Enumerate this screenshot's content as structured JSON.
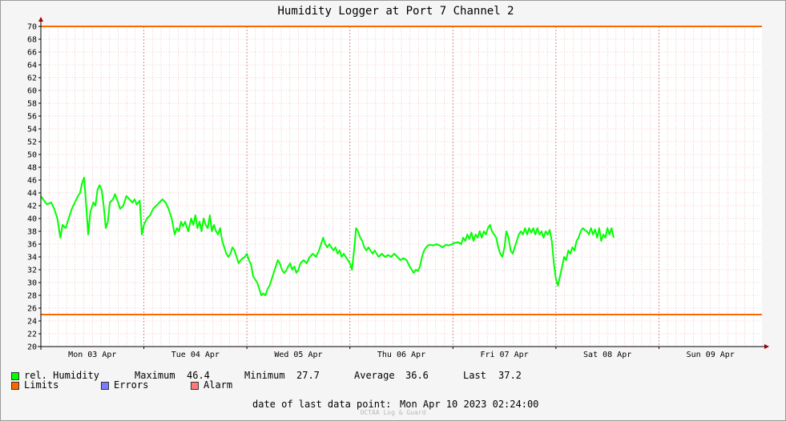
{
  "chart_data": {
    "type": "line",
    "title": "Humidity Logger at Port 7 Channel 2",
    "xlabel": "",
    "ylabel": "",
    "ylim": [
      20,
      70
    ],
    "yticks": [
      20,
      22,
      24,
      26,
      28,
      30,
      32,
      34,
      36,
      38,
      40,
      42,
      44,
      46,
      48,
      50,
      52,
      54,
      56,
      58,
      60,
      62,
      64,
      66,
      68,
      70
    ],
    "xlim": [
      0,
      7
    ],
    "x_tick_labels": [
      {
        "x": 0.5,
        "label": "Mon 03 Apr"
      },
      {
        "x": 1.5,
        "label": "Tue 04 Apr"
      },
      {
        "x": 2.5,
        "label": "Wed 05 Apr"
      },
      {
        "x": 3.5,
        "label": "Thu 06 Apr"
      },
      {
        "x": 4.5,
        "label": "Fri 07 Apr"
      },
      {
        "x": 5.5,
        "label": "Sat 08 Apr"
      },
      {
        "x": 6.5,
        "label": "Sun 09 Apr"
      }
    ],
    "grid": true,
    "limits": [
      25,
      70
    ],
    "series": [
      {
        "name": "rel. Humidity",
        "color": "#00ff00",
        "points": [
          [
            0.0,
            43.5
          ],
          [
            0.03,
            42.8
          ],
          [
            0.06,
            42.2
          ],
          [
            0.1,
            42.5
          ],
          [
            0.13,
            41.5
          ],
          [
            0.16,
            40.0
          ],
          [
            0.19,
            37.0
          ],
          [
            0.21,
            39.0
          ],
          [
            0.24,
            38.5
          ],
          [
            0.27,
            40.0
          ],
          [
            0.3,
            41.5
          ],
          [
            0.33,
            42.5
          ],
          [
            0.36,
            43.5
          ],
          [
            0.38,
            44.0
          ],
          [
            0.4,
            45.5
          ],
          [
            0.42,
            46.4
          ],
          [
            0.44,
            42.0
          ],
          [
            0.46,
            37.5
          ],
          [
            0.48,
            41.0
          ],
          [
            0.51,
            42.5
          ],
          [
            0.53,
            42.0
          ],
          [
            0.55,
            44.5
          ],
          [
            0.57,
            45.2
          ],
          [
            0.59,
            44.5
          ],
          [
            0.61,
            42.0
          ],
          [
            0.63,
            38.5
          ],
          [
            0.65,
            39.5
          ],
          [
            0.67,
            42.5
          ],
          [
            0.7,
            43.0
          ],
          [
            0.72,
            43.8
          ],
          [
            0.75,
            42.5
          ],
          [
            0.77,
            41.5
          ],
          [
            0.8,
            42.0
          ],
          [
            0.83,
            43.5
          ],
          [
            0.86,
            43.0
          ],
          [
            0.89,
            42.5
          ],
          [
            0.91,
            43.0
          ],
          [
            0.93,
            42.2
          ],
          [
            0.96,
            42.8
          ],
          [
            0.98,
            37.5
          ],
          [
            1.0,
            39.0
          ],
          [
            1.03,
            40.0
          ],
          [
            1.06,
            40.5
          ],
          [
            1.09,
            41.5
          ],
          [
            1.12,
            42.0
          ],
          [
            1.15,
            42.5
          ],
          [
            1.18,
            43.0
          ],
          [
            1.21,
            42.5
          ],
          [
            1.24,
            41.5
          ],
          [
            1.27,
            40.0
          ],
          [
            1.3,
            37.5
          ],
          [
            1.32,
            38.5
          ],
          [
            1.34,
            38.0
          ],
          [
            1.36,
            39.5
          ],
          [
            1.38,
            38.8
          ],
          [
            1.4,
            39.5
          ],
          [
            1.43,
            38.0
          ],
          [
            1.46,
            40.0
          ],
          [
            1.48,
            39.0
          ],
          [
            1.5,
            40.5
          ],
          [
            1.52,
            38.5
          ],
          [
            1.54,
            39.5
          ],
          [
            1.56,
            38.0
          ],
          [
            1.58,
            40.0
          ],
          [
            1.6,
            39.0
          ],
          [
            1.62,
            38.5
          ],
          [
            1.64,
            40.5
          ],
          [
            1.66,
            38.0
          ],
          [
            1.68,
            39.0
          ],
          [
            1.7,
            38.0
          ],
          [
            1.72,
            37.5
          ],
          [
            1.74,
            38.5
          ],
          [
            1.76,
            36.5
          ],
          [
            1.78,
            35.5
          ],
          [
            1.8,
            34.5
          ],
          [
            1.82,
            34.0
          ],
          [
            1.84,
            34.5
          ],
          [
            1.86,
            35.5
          ],
          [
            1.88,
            35.0
          ],
          [
            1.9,
            34.0
          ],
          [
            1.92,
            33.0
          ],
          [
            1.94,
            33.5
          ],
          [
            1.96,
            33.8
          ],
          [
            1.98,
            34.0
          ],
          [
            2.0,
            34.5
          ],
          [
            2.02,
            33.5
          ],
          [
            2.04,
            32.8
          ],
          [
            2.06,
            31.0
          ],
          [
            2.08,
            30.5
          ],
          [
            2.1,
            30.0
          ],
          [
            2.12,
            29.0
          ],
          [
            2.14,
            28.0
          ],
          [
            2.16,
            28.3
          ],
          [
            2.18,
            28.0
          ],
          [
            2.2,
            29.0
          ],
          [
            2.22,
            29.5
          ],
          [
            2.24,
            30.5
          ],
          [
            2.26,
            31.5
          ],
          [
            2.28,
            32.5
          ],
          [
            2.3,
            33.5
          ],
          [
            2.32,
            33.0
          ],
          [
            2.34,
            32.0
          ],
          [
            2.36,
            31.5
          ],
          [
            2.38,
            31.8
          ],
          [
            2.4,
            32.5
          ],
          [
            2.42,
            33.0
          ],
          [
            2.44,
            32.0
          ],
          [
            2.46,
            32.5
          ],
          [
            2.48,
            31.5
          ],
          [
            2.5,
            32.0
          ],
          [
            2.52,
            33.0
          ],
          [
            2.55,
            33.5
          ],
          [
            2.58,
            33.0
          ],
          [
            2.61,
            34.0
          ],
          [
            2.64,
            34.5
          ],
          [
            2.67,
            34.0
          ],
          [
            2.7,
            35.0
          ],
          [
            2.72,
            36.0
          ],
          [
            2.74,
            37.0
          ],
          [
            2.76,
            36.0
          ],
          [
            2.78,
            35.5
          ],
          [
            2.8,
            36.0
          ],
          [
            2.82,
            35.5
          ],
          [
            2.84,
            35.0
          ],
          [
            2.86,
            35.5
          ],
          [
            2.88,
            34.5
          ],
          [
            2.9,
            35.0
          ],
          [
            2.92,
            34.0
          ],
          [
            2.94,
            34.5
          ],
          [
            2.96,
            34.0
          ],
          [
            2.98,
            33.5
          ],
          [
            3.0,
            33.0
          ],
          [
            3.02,
            32.0
          ],
          [
            3.04,
            35.0
          ],
          [
            3.06,
            38.5
          ],
          [
            3.08,
            38.0
          ],
          [
            3.1,
            37.0
          ],
          [
            3.12,
            36.5
          ],
          [
            3.14,
            35.5
          ],
          [
            3.16,
            35.0
          ],
          [
            3.18,
            35.5
          ],
          [
            3.2,
            35.0
          ],
          [
            3.22,
            34.5
          ],
          [
            3.24,
            35.0
          ],
          [
            3.26,
            34.5
          ],
          [
            3.28,
            34.0
          ],
          [
            3.31,
            34.5
          ],
          [
            3.34,
            34.0
          ],
          [
            3.37,
            34.3
          ],
          [
            3.4,
            34.0
          ],
          [
            3.43,
            34.5
          ],
          [
            3.46,
            34.0
          ],
          [
            3.49,
            33.5
          ],
          [
            3.52,
            33.8
          ],
          [
            3.55,
            33.5
          ],
          [
            3.58,
            32.5
          ],
          [
            3.6,
            32.0
          ],
          [
            3.62,
            31.5
          ],
          [
            3.64,
            32.0
          ],
          [
            3.66,
            31.8
          ],
          [
            3.68,
            32.5
          ],
          [
            3.7,
            34.0
          ],
          [
            3.72,
            35.0
          ],
          [
            3.74,
            35.5
          ],
          [
            3.76,
            35.8
          ],
          [
            3.78,
            35.9
          ],
          [
            3.81,
            35.8
          ],
          [
            3.84,
            36.0
          ],
          [
            3.87,
            35.8
          ],
          [
            3.9,
            35.5
          ],
          [
            3.93,
            35.9
          ],
          [
            3.96,
            35.8
          ],
          [
            3.99,
            36.0
          ],
          [
            4.02,
            36.2
          ],
          [
            4.05,
            36.3
          ],
          [
            4.08,
            36.0
          ],
          [
            4.1,
            37.0
          ],
          [
            4.12,
            36.5
          ],
          [
            4.14,
            37.5
          ],
          [
            4.16,
            36.8
          ],
          [
            4.18,
            37.8
          ],
          [
            4.2,
            36.5
          ],
          [
            4.22,
            37.5
          ],
          [
            4.24,
            37.0
          ],
          [
            4.26,
            38.0
          ],
          [
            4.28,
            37.0
          ],
          [
            4.3,
            38.0
          ],
          [
            4.32,
            37.5
          ],
          [
            4.34,
            38.5
          ],
          [
            4.36,
            39.0
          ],
          [
            4.38,
            38.0
          ],
          [
            4.4,
            37.5
          ],
          [
            4.42,
            37.0
          ],
          [
            4.44,
            35.5
          ],
          [
            4.46,
            34.5
          ],
          [
            4.48,
            34.0
          ],
          [
            4.5,
            35.5
          ],
          [
            4.52,
            38.0
          ],
          [
            4.54,
            37.0
          ],
          [
            4.56,
            35.0
          ],
          [
            4.58,
            34.5
          ],
          [
            4.6,
            35.5
          ],
          [
            4.62,
            36.5
          ],
          [
            4.64,
            37.5
          ],
          [
            4.66,
            38.0
          ],
          [
            4.68,
            37.5
          ],
          [
            4.7,
            38.5
          ],
          [
            4.72,
            37.5
          ],
          [
            4.74,
            38.5
          ],
          [
            4.76,
            37.8
          ],
          [
            4.78,
            38.5
          ],
          [
            4.8,
            37.5
          ],
          [
            4.82,
            38.5
          ],
          [
            4.84,
            37.5
          ],
          [
            4.86,
            38.0
          ],
          [
            4.88,
            37.0
          ],
          [
            4.9,
            38.0
          ],
          [
            4.92,
            37.5
          ],
          [
            4.94,
            38.2
          ],
          [
            4.96,
            36.5
          ],
          [
            4.98,
            33.0
          ],
          [
            5.0,
            30.5
          ],
          [
            5.02,
            29.5
          ],
          [
            5.04,
            31.0
          ],
          [
            5.06,
            32.5
          ],
          [
            5.08,
            34.0
          ],
          [
            5.1,
            33.5
          ],
          [
            5.12,
            35.0
          ],
          [
            5.14,
            34.5
          ],
          [
            5.16,
            35.5
          ],
          [
            5.18,
            35.0
          ],
          [
            5.2,
            36.5
          ],
          [
            5.22,
            37.0
          ],
          [
            5.24,
            38.0
          ],
          [
            5.26,
            38.5
          ],
          [
            5.28,
            38.2
          ],
          [
            5.3,
            38.0
          ],
          [
            5.32,
            37.5
          ],
          [
            5.34,
            38.5
          ],
          [
            5.36,
            37.5
          ],
          [
            5.38,
            38.3
          ],
          [
            5.4,
            37.0
          ],
          [
            5.42,
            38.5
          ],
          [
            5.44,
            36.5
          ],
          [
            5.46,
            37.5
          ],
          [
            5.48,
            37.0
          ],
          [
            5.5,
            38.5
          ],
          [
            5.52,
            37.5
          ],
          [
            5.54,
            38.5
          ],
          [
            5.56,
            37.0
          ]
        ]
      }
    ]
  },
  "legend": {
    "humidity_label": "rel. Humidity",
    "humidity_color": "#00ff00",
    "max_label": "Maximum",
    "max_value": "46.4",
    "min_label": "Minimum",
    "min_value": "27.7",
    "avg_label": "Average",
    "avg_value": "36.6",
    "last_label": "Last",
    "last_value": "37.2",
    "limits_label": "Limits",
    "limits_color": "#ff6600",
    "errors_label": "Errors",
    "errors_color": "#7b7bff",
    "alarm_label": "Alarm",
    "alarm_color": "#ff7b7b"
  },
  "footer": {
    "last_point_label": "date of last data point:",
    "last_point_value": "Mon Apr 10 2023 02:24:00",
    "watermark": "OCTAA Log & Guard"
  }
}
